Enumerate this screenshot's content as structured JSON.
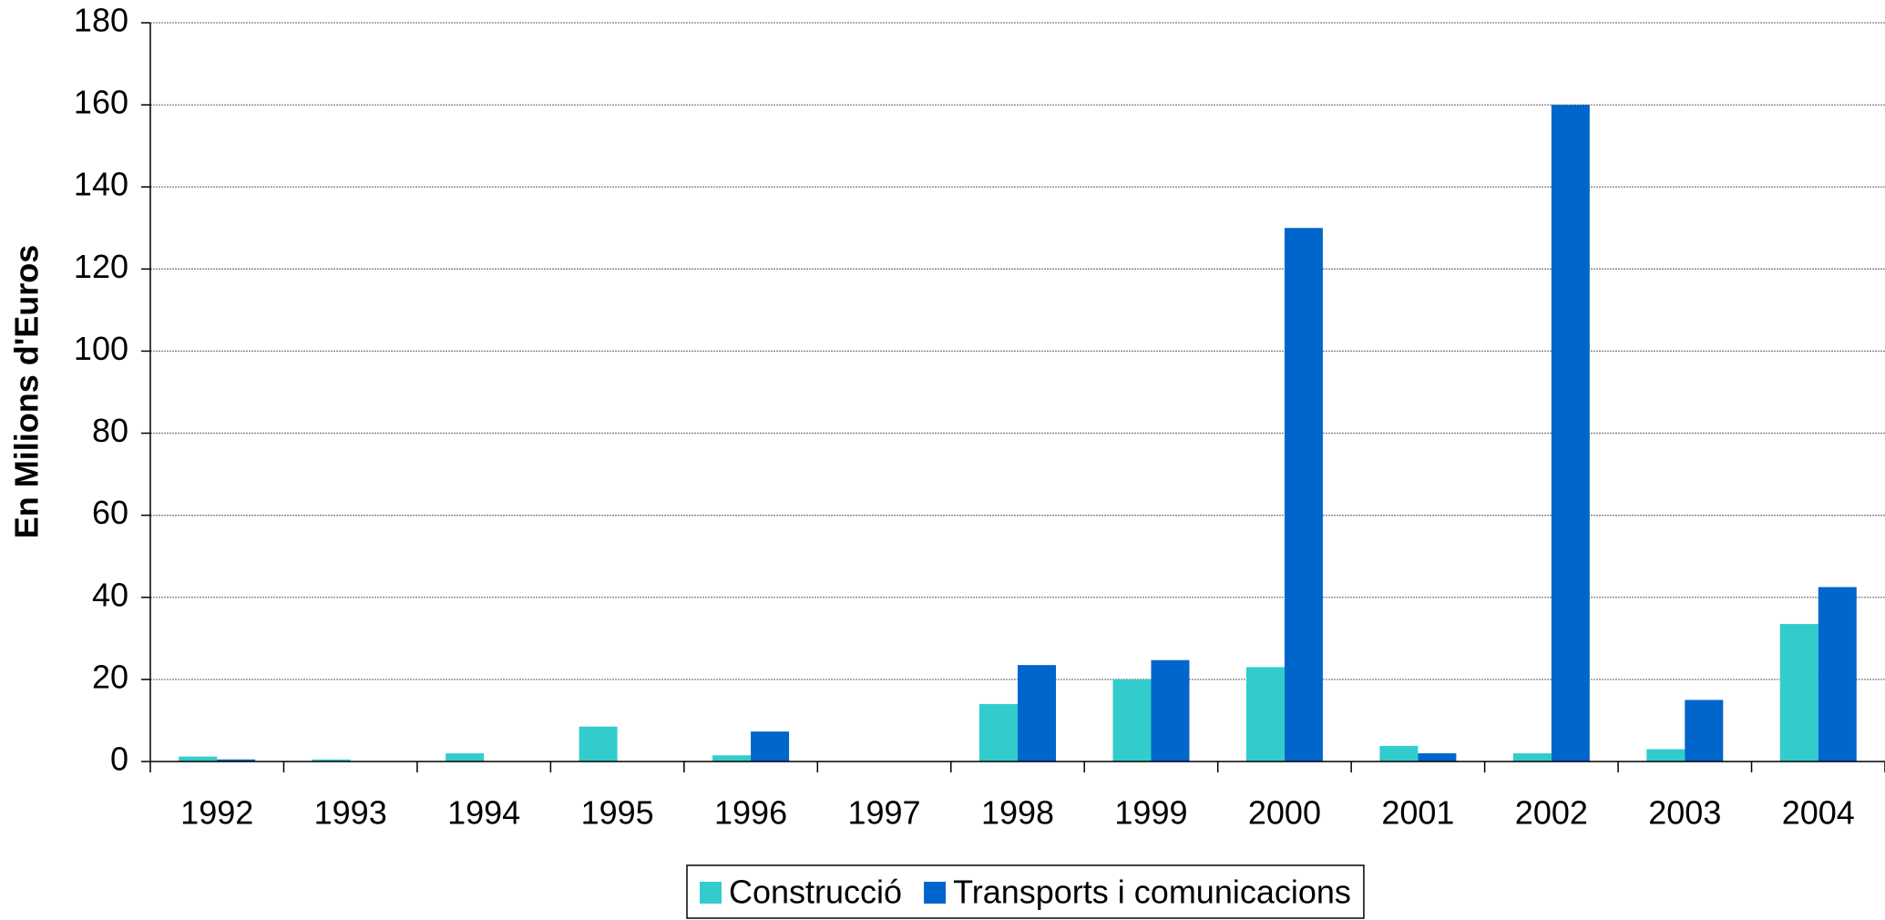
{
  "chart_data": {
    "type": "bar",
    "y_axis_label": "En Milions d'Euros",
    "categories": [
      "1992",
      "1993",
      "1994",
      "1995",
      "1996",
      "1997",
      "1998",
      "1999",
      "2000",
      "2001",
      "2002",
      "2003",
      "2004"
    ],
    "series": [
      {
        "name": "Construcció",
        "color": "#33CCCC",
        "values": [
          1.2,
          0.5,
          2,
          8.5,
          1.5,
          0,
          14,
          20,
          23,
          3.8,
          2,
          3,
          33.5
        ]
      },
      {
        "name": "Transports i comunicacions",
        "color": "#0066CC",
        "values": [
          0.5,
          0,
          0,
          0,
          7.3,
          0,
          23.5,
          24.7,
          130,
          2,
          160,
          15,
          42.5
        ]
      }
    ],
    "ylim": [
      0,
      180
    ],
    "yticks": [
      0,
      20,
      40,
      60,
      80,
      100,
      120,
      140,
      160,
      180
    ],
    "grid": true,
    "legend": "bottom"
  }
}
